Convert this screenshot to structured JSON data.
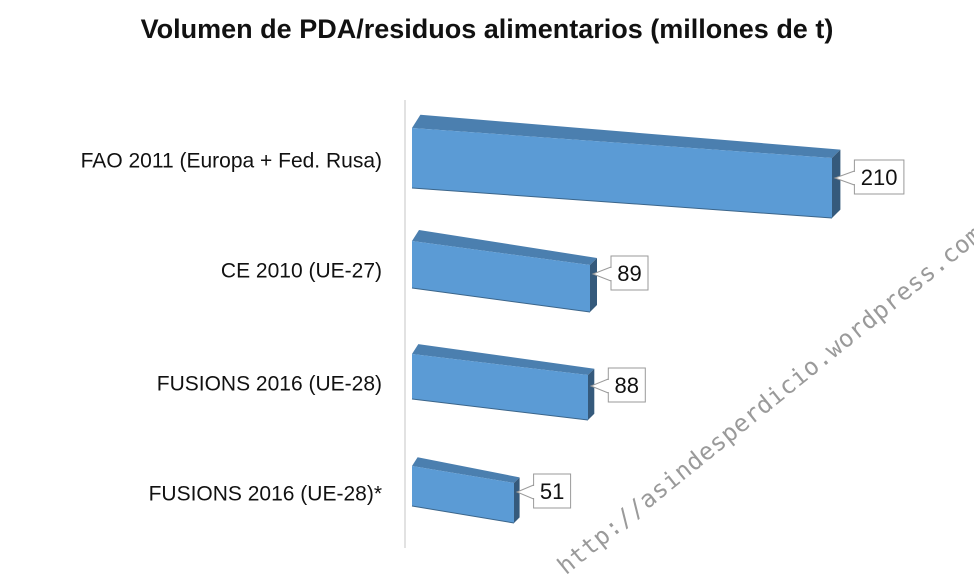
{
  "chart_data": {
    "type": "bar",
    "orientation": "horizontal",
    "title": "Volumen de PDA/residuos alimentarios (millones de t)",
    "categories": [
      "FAO 2011 (Europa + Fed. Rusa)",
      "CE 2010 (UE-27)",
      "FUSIONS 2016 (UE-28)",
      "FUSIONS 2016 (UE-28)*"
    ],
    "values": [
      210,
      89,
      88,
      51
    ],
    "data_labels": [
      "210",
      "89",
      "88",
      "51"
    ],
    "bar_color": "#5b9bd5",
    "grid": false,
    "legend": "none",
    "style": "3d-perspective"
  },
  "watermark": "http://asindesperdicio.wordpress.com"
}
